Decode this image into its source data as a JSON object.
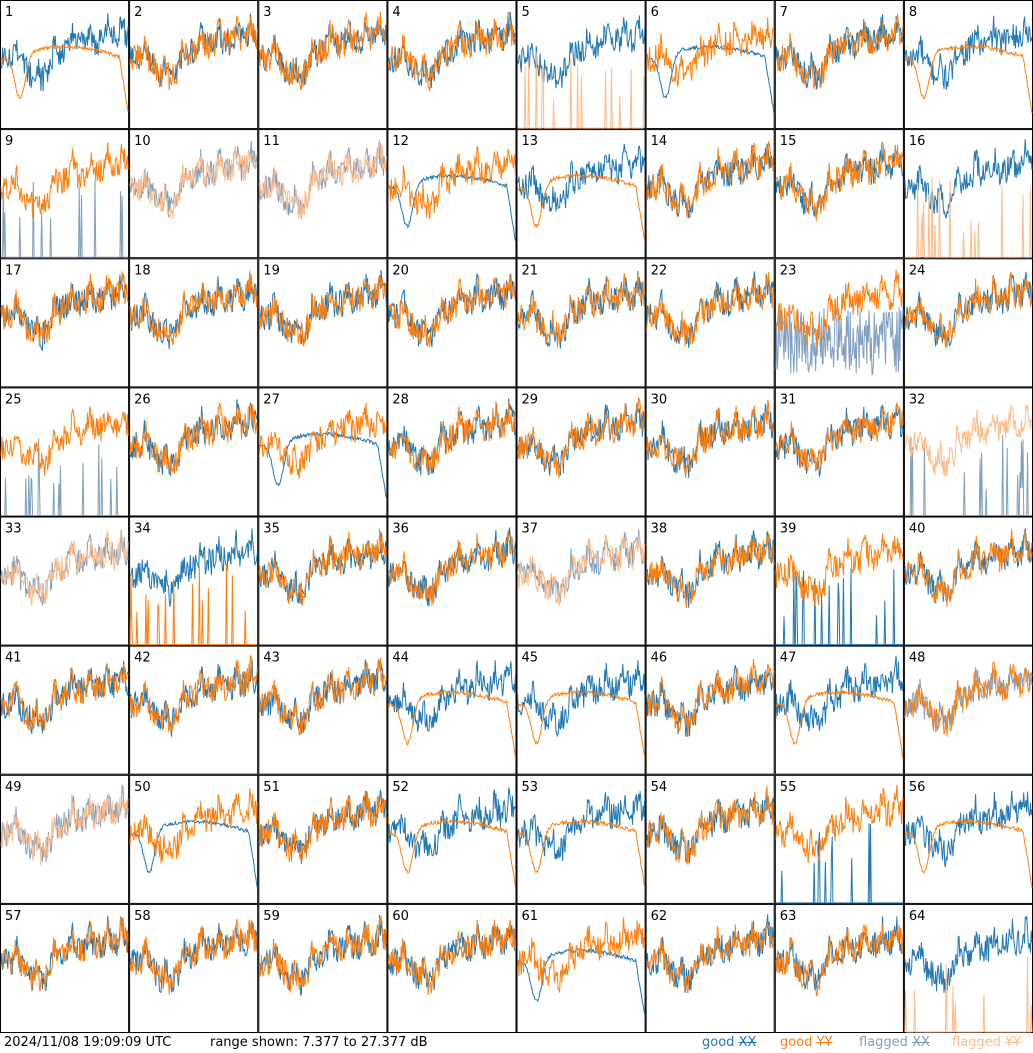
{
  "footer": {
    "timestamp": "2024/11/08 19:09:09 UTC",
    "range_text": "range shown: 7.377 to 27.377 dB"
  },
  "legend": [
    {
      "id": "good_xx",
      "word": "good",
      "pol": "XX",
      "color": "#1f77b4"
    },
    {
      "id": "good_yy",
      "word": "good",
      "pol": "YY",
      "color": "#ff7f0e"
    },
    {
      "id": "flagged_xx",
      "word": "flagged",
      "pol": "XX",
      "color": "#7f9fbf"
    },
    {
      "id": "flagged_yy",
      "word": "flagged",
      "pol": "YY",
      "color": "#ffbb88"
    }
  ],
  "chart_data": {
    "type": "line",
    "grid_layout": {
      "rows": 8,
      "cols": 8
    },
    "ylim": [
      7.377,
      27.377
    ],
    "panels": [
      {
        "label": "1",
        "xx": "good",
        "yy": "good",
        "xx_shape": "normal",
        "yy_shape": "smooth"
      },
      {
        "label": "2",
        "xx": "good",
        "yy": "good",
        "xx_shape": "normal",
        "yy_shape": "normal"
      },
      {
        "label": "3",
        "xx": "good",
        "yy": "good",
        "xx_shape": "normal",
        "yy_shape": "normal"
      },
      {
        "label": "4",
        "xx": "good",
        "yy": "good",
        "xx_shape": "normal",
        "yy_shape": "normal"
      },
      {
        "label": "5",
        "xx": "good",
        "yy": "flagged",
        "xx_shape": "normal",
        "yy_shape": "spikes"
      },
      {
        "label": "6",
        "xx": "good",
        "yy": "good",
        "xx_shape": "smooth",
        "yy_shape": "normal"
      },
      {
        "label": "7",
        "xx": "good",
        "yy": "good",
        "xx_shape": "normal",
        "yy_shape": "normal"
      },
      {
        "label": "8",
        "xx": "good",
        "yy": "good",
        "xx_shape": "normal",
        "yy_shape": "smooth"
      },
      {
        "label": "9",
        "xx": "flagged",
        "yy": "good",
        "xx_shape": "spikes",
        "yy_shape": "normal"
      },
      {
        "label": "10",
        "xx": "flagged",
        "yy": "flagged",
        "xx_shape": "normal",
        "yy_shape": "normal"
      },
      {
        "label": "11",
        "xx": "flagged",
        "yy": "flagged",
        "xx_shape": "normal",
        "yy_shape": "normal"
      },
      {
        "label": "12",
        "xx": "good",
        "yy": "good",
        "xx_shape": "smooth",
        "yy_shape": "normal"
      },
      {
        "label": "13",
        "xx": "good",
        "yy": "good",
        "xx_shape": "normal",
        "yy_shape": "smooth"
      },
      {
        "label": "14",
        "xx": "good",
        "yy": "good",
        "xx_shape": "normal",
        "yy_shape": "normal"
      },
      {
        "label": "15",
        "xx": "good",
        "yy": "good",
        "xx_shape": "normal",
        "yy_shape": "normal"
      },
      {
        "label": "16",
        "xx": "good",
        "yy": "flagged",
        "xx_shape": "normal",
        "yy_shape": "spikes"
      },
      {
        "label": "17",
        "xx": "good",
        "yy": "good",
        "xx_shape": "normal",
        "yy_shape": "normal"
      },
      {
        "label": "18",
        "xx": "good",
        "yy": "good",
        "xx_shape": "normal",
        "yy_shape": "normal"
      },
      {
        "label": "19",
        "xx": "good",
        "yy": "good",
        "xx_shape": "normal",
        "yy_shape": "normal"
      },
      {
        "label": "20",
        "xx": "good",
        "yy": "good",
        "xx_shape": "normal",
        "yy_shape": "normal"
      },
      {
        "label": "21",
        "xx": "good",
        "yy": "good",
        "xx_shape": "normal",
        "yy_shape": "normal"
      },
      {
        "label": "22",
        "xx": "good",
        "yy": "good",
        "xx_shape": "normal",
        "yy_shape": "normal"
      },
      {
        "label": "23",
        "xx": "flagged",
        "yy": "good",
        "xx_shape": "noisy",
        "yy_shape": "normal"
      },
      {
        "label": "24",
        "xx": "good",
        "yy": "good",
        "xx_shape": "normal",
        "yy_shape": "normal"
      },
      {
        "label": "25",
        "xx": "flagged",
        "yy": "good",
        "xx_shape": "spikes",
        "yy_shape": "normal"
      },
      {
        "label": "26",
        "xx": "good",
        "yy": "good",
        "xx_shape": "normal",
        "yy_shape": "normal"
      },
      {
        "label": "27",
        "xx": "good",
        "yy": "good",
        "xx_shape": "smooth",
        "yy_shape": "normal"
      },
      {
        "label": "28",
        "xx": "good",
        "yy": "good",
        "xx_shape": "normal",
        "yy_shape": "normal"
      },
      {
        "label": "29",
        "xx": "good",
        "yy": "good",
        "xx_shape": "normal",
        "yy_shape": "normal"
      },
      {
        "label": "30",
        "xx": "good",
        "yy": "good",
        "xx_shape": "normal",
        "yy_shape": "normal"
      },
      {
        "label": "31",
        "xx": "good",
        "yy": "good",
        "xx_shape": "normal",
        "yy_shape": "normal"
      },
      {
        "label": "32",
        "xx": "flagged",
        "yy": "flagged",
        "xx_shape": "spikes",
        "yy_shape": "normal"
      },
      {
        "label": "33",
        "xx": "flagged",
        "yy": "flagged",
        "xx_shape": "normal",
        "yy_shape": "normal"
      },
      {
        "label": "34",
        "xx": "good",
        "yy": "good",
        "xx_shape": "normal",
        "yy_shape": "spikes"
      },
      {
        "label": "35",
        "xx": "good",
        "yy": "good",
        "xx_shape": "normal",
        "yy_shape": "normal"
      },
      {
        "label": "36",
        "xx": "good",
        "yy": "good",
        "xx_shape": "normal",
        "yy_shape": "normal"
      },
      {
        "label": "37",
        "xx": "flagged",
        "yy": "flagged",
        "xx_shape": "normal",
        "yy_shape": "normal"
      },
      {
        "label": "38",
        "xx": "good",
        "yy": "good",
        "xx_shape": "normal",
        "yy_shape": "normal"
      },
      {
        "label": "39",
        "xx": "good",
        "yy": "good",
        "xx_shape": "spikes",
        "yy_shape": "normal"
      },
      {
        "label": "40",
        "xx": "good",
        "yy": "good",
        "xx_shape": "normal",
        "yy_shape": "normal"
      },
      {
        "label": "41",
        "xx": "good",
        "yy": "good",
        "xx_shape": "normal",
        "yy_shape": "normal"
      },
      {
        "label": "42",
        "xx": "good",
        "yy": "good",
        "xx_shape": "normal",
        "yy_shape": "normal"
      },
      {
        "label": "43",
        "xx": "good",
        "yy": "good",
        "xx_shape": "normal",
        "yy_shape": "normal"
      },
      {
        "label": "44",
        "xx": "good",
        "yy": "good",
        "xx_shape": "normal",
        "yy_shape": "smooth"
      },
      {
        "label": "45",
        "xx": "good",
        "yy": "good",
        "xx_shape": "normal",
        "yy_shape": "smooth"
      },
      {
        "label": "46",
        "xx": "good",
        "yy": "good",
        "xx_shape": "normal",
        "yy_shape": "normal"
      },
      {
        "label": "47",
        "xx": "good",
        "yy": "good",
        "xx_shape": "normal",
        "yy_shape": "smooth"
      },
      {
        "label": "48",
        "xx": "flagged",
        "yy": "good",
        "xx_shape": "normal",
        "yy_shape": "normal"
      },
      {
        "label": "49",
        "xx": "flagged",
        "yy": "flagged",
        "xx_shape": "normal",
        "yy_shape": "normal"
      },
      {
        "label": "50",
        "xx": "good",
        "yy": "good",
        "xx_shape": "smooth",
        "yy_shape": "normal"
      },
      {
        "label": "51",
        "xx": "good",
        "yy": "good",
        "xx_shape": "normal",
        "yy_shape": "normal"
      },
      {
        "label": "52",
        "xx": "good",
        "yy": "good",
        "xx_shape": "normal",
        "yy_shape": "smooth"
      },
      {
        "label": "53",
        "xx": "good",
        "yy": "good",
        "xx_shape": "normal",
        "yy_shape": "smooth"
      },
      {
        "label": "54",
        "xx": "good",
        "yy": "good",
        "xx_shape": "normal",
        "yy_shape": "normal"
      },
      {
        "label": "55",
        "xx": "good",
        "yy": "good",
        "xx_shape": "spikes",
        "yy_shape": "normal"
      },
      {
        "label": "56",
        "xx": "good",
        "yy": "good",
        "xx_shape": "normal",
        "yy_shape": "smooth"
      },
      {
        "label": "57",
        "xx": "good",
        "yy": "good",
        "xx_shape": "normal",
        "yy_shape": "normal"
      },
      {
        "label": "58",
        "xx": "good",
        "yy": "good",
        "xx_shape": "normal",
        "yy_shape": "normal"
      },
      {
        "label": "59",
        "xx": "good",
        "yy": "good",
        "xx_shape": "normal",
        "yy_shape": "normal"
      },
      {
        "label": "60",
        "xx": "good",
        "yy": "good",
        "xx_shape": "normal",
        "yy_shape": "normal"
      },
      {
        "label": "61",
        "xx": "good",
        "yy": "good",
        "xx_shape": "smooth",
        "yy_shape": "normal"
      },
      {
        "label": "62",
        "xx": "good",
        "yy": "good",
        "xx_shape": "normal",
        "yy_shape": "normal"
      },
      {
        "label": "63",
        "xx": "good",
        "yy": "good",
        "xx_shape": "normal",
        "yy_shape": "normal"
      },
      {
        "label": "64",
        "xx": "good",
        "yy": "flagged",
        "xx_shape": "normal",
        "yy_shape": "spikes"
      }
    ]
  }
}
